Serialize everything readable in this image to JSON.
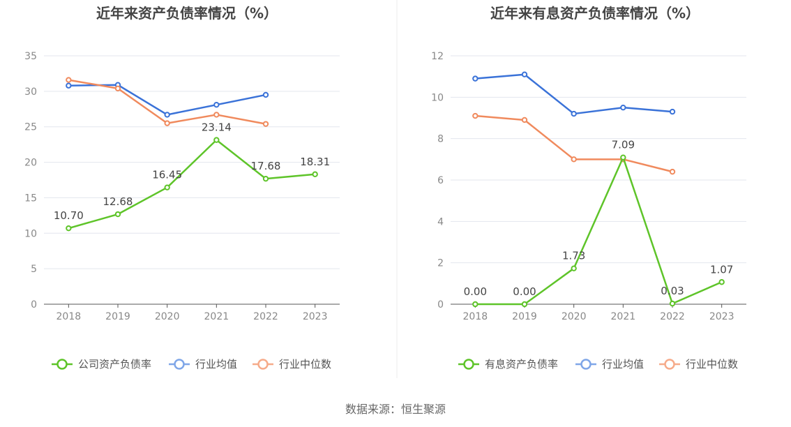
{
  "source_text": "数据来源：恒生聚源",
  "colors": {
    "company": "#5ec429",
    "average": "#3a72d8",
    "median": "#f08a5d",
    "legend_average": "#7fa6e8",
    "legend_median": "#f6ab8a"
  },
  "chart_data": [
    {
      "type": "line",
      "title": "近年来资产负债率情况（%）",
      "xlabel": "",
      "ylabel": "",
      "categories": [
        "2018",
        "2019",
        "2020",
        "2021",
        "2022",
        "2023"
      ],
      "ylim": [
        0,
        35
      ],
      "yticks": [
        "0",
        "5",
        "10",
        "15",
        "20",
        "25",
        "30",
        "35"
      ],
      "grid": true,
      "legend_position": "bottom",
      "series": [
        {
          "name": "公司资产负债率",
          "role": "company",
          "values": [
            10.7,
            12.68,
            16.45,
            23.14,
            17.68,
            18.31
          ],
          "labels": [
            "10.70",
            "12.68",
            "16.45",
            "23.14",
            "17.68",
            "18.31"
          ]
        },
        {
          "name": "行业均值",
          "role": "average",
          "values": [
            30.8,
            30.9,
            26.7,
            28.1,
            29.5,
            null
          ]
        },
        {
          "name": "行业中位数",
          "role": "median",
          "values": [
            31.6,
            30.4,
            25.5,
            26.7,
            25.4,
            null
          ]
        }
      ]
    },
    {
      "type": "line",
      "title": "近年来有息资产负债率情况（%）",
      "xlabel": "",
      "ylabel": "",
      "categories": [
        "2018",
        "2019",
        "2020",
        "2021",
        "2022",
        "2023"
      ],
      "ylim": [
        0,
        12
      ],
      "yticks": [
        "0",
        "2",
        "4",
        "6",
        "8",
        "10",
        "12"
      ],
      "grid": true,
      "legend_position": "bottom",
      "series": [
        {
          "name": "有息资产负债率",
          "role": "company",
          "values": [
            0.0,
            0.0,
            1.73,
            7.09,
            0.03,
            1.07
          ],
          "labels": [
            "0.00",
            "0.00",
            "1.73",
            "7.09",
            "0.03",
            "1.07"
          ]
        },
        {
          "name": "行业均值",
          "role": "average",
          "values": [
            10.9,
            11.1,
            9.2,
            9.5,
            9.3,
            null
          ]
        },
        {
          "name": "行业中位数",
          "role": "median",
          "values": [
            9.1,
            8.9,
            7.0,
            7.0,
            6.4,
            null
          ]
        }
      ]
    }
  ]
}
